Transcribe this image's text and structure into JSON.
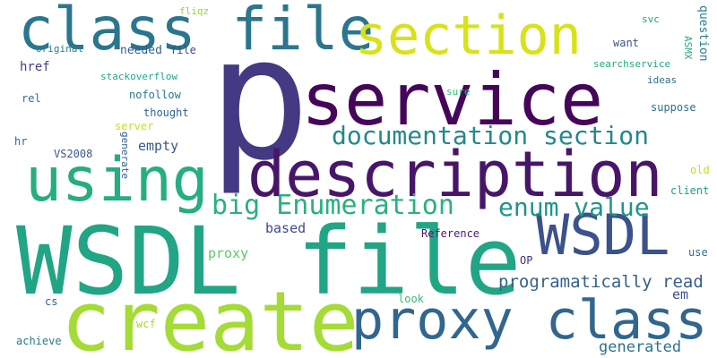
{
  "word_cloud": {
    "words": [
      {
        "text": "p",
        "color": "#443983"
      },
      {
        "text": "WSDL file",
        "color": "#21a585"
      },
      {
        "text": "create",
        "color": "#a5db36"
      },
      {
        "text": "description",
        "color": "#481668"
      },
      {
        "text": "service",
        "color": "#450559"
      },
      {
        "text": "class file",
        "color": "#2a768e"
      },
      {
        "text": "proxy class",
        "color": "#31668e"
      },
      {
        "text": "section",
        "color": "#d8e219"
      },
      {
        "text": "using",
        "color": "#26ad81"
      },
      {
        "text": "WSDL",
        "color": "#3b528b"
      },
      {
        "text": "documentation section",
        "color": "#23888e"
      },
      {
        "text": "big Enumeration",
        "color": "#2ab07f"
      },
      {
        "text": "enum value",
        "color": "#1f958b"
      },
      {
        "text": "programatically read",
        "color": "#355f8d"
      },
      {
        "text": "generated",
        "color": "#2c738e"
      },
      {
        "text": "proxy",
        "color": "#5ec962"
      },
      {
        "text": "href",
        "color": "#424086"
      },
      {
        "text": "empty",
        "color": "#38588c"
      },
      {
        "text": "based",
        "color": "#3e4a89"
      },
      {
        "text": "em",
        "color": "#3a548c"
      },
      {
        "text": "question",
        "color": "#277f8e"
      },
      {
        "text": "stackoverflow",
        "color": "#22a785"
      },
      {
        "text": "nofollow",
        "color": "#297b8e"
      },
      {
        "text": "original",
        "color": "#287d8e"
      },
      {
        "text": "needed",
        "color": "#355e8d"
      },
      {
        "text": "file",
        "color": "#3f4788"
      },
      {
        "text": "want",
        "color": "#3b518b"
      },
      {
        "text": "fliqz",
        "color": "#93d741"
      },
      {
        "text": "svc",
        "color": "#20a386"
      },
      {
        "text": "ASMX",
        "color": "#25ac82"
      },
      {
        "text": "searchservice",
        "color": "#22a884"
      },
      {
        "text": "sure",
        "color": "#35b779"
      },
      {
        "text": "ideas",
        "color": "#2d718e"
      },
      {
        "text": "suppose",
        "color": "#2c728e"
      },
      {
        "text": "thought",
        "color": "#33638d"
      },
      {
        "text": "server",
        "color": "#c8e020"
      },
      {
        "text": "rel",
        "color": "#2c728e"
      },
      {
        "text": "hr",
        "color": "#30698e"
      },
      {
        "text": "VS2008",
        "color": "#38598c"
      },
      {
        "text": "generate",
        "color": "#355f8d"
      },
      {
        "text": "old",
        "color": "#c0df25"
      },
      {
        "text": "client",
        "color": "#1fa188"
      },
      {
        "text": "Reference",
        "color": "#481c6e"
      },
      {
        "text": "OP",
        "color": "#46307e"
      },
      {
        "text": "use",
        "color": "#2d708e"
      },
      {
        "text": "look",
        "color": "#3aba76"
      },
      {
        "text": "cs",
        "color": "#34608d"
      },
      {
        "text": "wcf",
        "color": "#a2da37"
      },
      {
        "text": "achieve",
        "color": "#2a788e"
      }
    ]
  }
}
